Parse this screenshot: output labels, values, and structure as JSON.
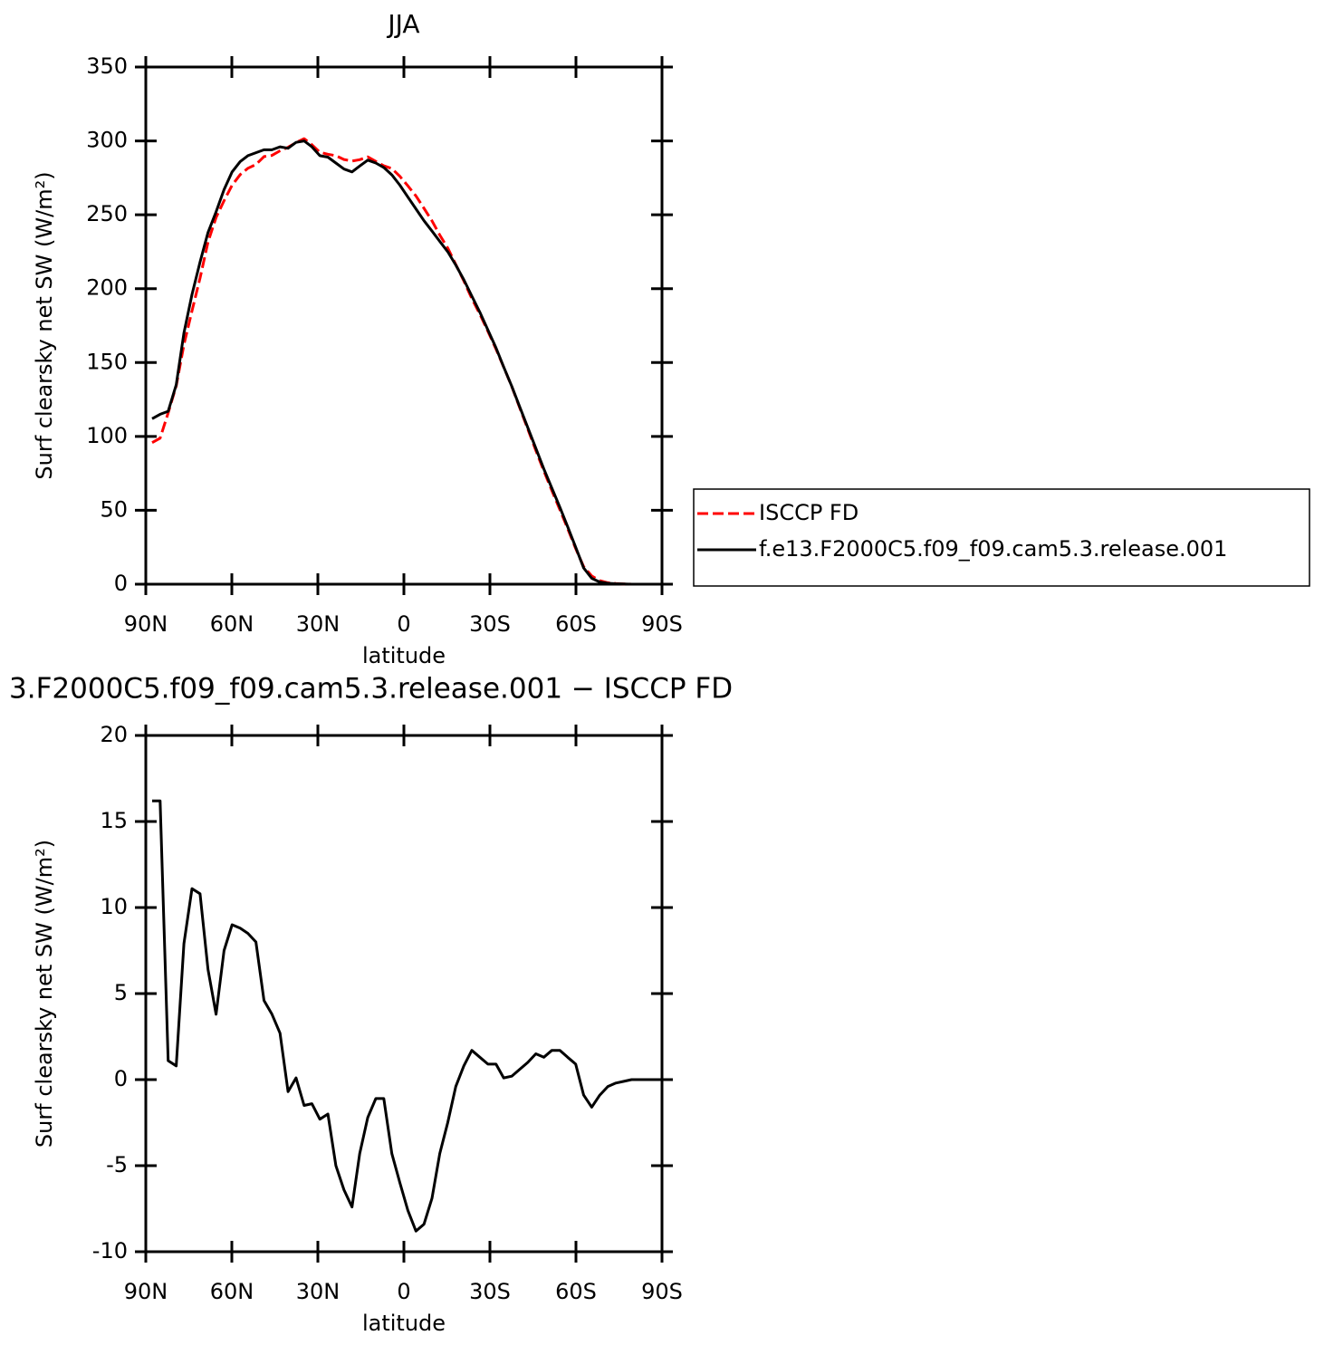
{
  "chart_data": [
    {
      "type": "line",
      "title": "JJA",
      "x_label": "latitude",
      "y_label": "Surf clearsky net SW (W/m²)",
      "x": [
        87.8,
        85.0,
        82.2,
        79.4,
        76.7,
        73.9,
        71.1,
        68.3,
        65.5,
        62.7,
        59.9,
        57.1,
        54.4,
        51.6,
        48.8,
        46.0,
        43.2,
        40.4,
        37.6,
        34.8,
        32.1,
        29.3,
        26.5,
        23.7,
        20.9,
        18.1,
        15.4,
        12.6,
        9.8,
        7.0,
        4.2,
        1.4,
        -1.4,
        -4.2,
        -7.0,
        -9.8,
        -12.5,
        -15.3,
        -18.1,
        -20.9,
        -23.7,
        -26.5,
        -29.3,
        -32.1,
        -34.8,
        -37.6,
        -40.4,
        -43.2,
        -46.0,
        -48.8,
        -51.6,
        -54.4,
        -57.1,
        -59.9,
        -62.7,
        -65.5,
        -68.3,
        -71.1,
        -73.9,
        -76.7,
        -79.4,
        -82.2,
        -85.0,
        -87.8
      ],
      "series": [
        {
          "name": "ISCCP FD",
          "color": "#ff0000",
          "dashed": true,
          "values": [
            95.8,
            98.8,
            115.9,
            134.2,
            162.1,
            184.9,
            207.2,
            231.6,
            248.2,
            259.5,
            270,
            277.2,
            281.5,
            284,
            289.4,
            290.2,
            293.3,
            295.7,
            298.9,
            301.5,
            297.4,
            292.3,
            291,
            290,
            287.4,
            286.4,
            287.3,
            289.2,
            286.1,
            283.1,
            281.3,
            276,
            269.6,
            262.8,
            254.4,
            245.9,
            236.3,
            227.5,
            216.4,
            205.2,
            193.3,
            182.7,
            171.1,
            159.1,
            146.9,
            133.8,
            119.4,
            105,
            90.5,
            76.7,
            63.3,
            50.3,
            37.7,
            24.1,
            11.9,
            5.6,
            2.4,
            1.0,
            0.5,
            0.2,
            0,
            0,
            0,
            0
          ]
        },
        {
          "name": "f.e13.F2000C5.f09_f09.cam5.3.release.001",
          "color": "#000000",
          "dashed": false,
          "values": [
            112,
            115,
            117,
            135,
            170,
            196,
            218,
            238,
            252,
            267,
            279,
            286,
            290,
            292,
            294,
            294,
            296,
            295,
            299,
            300,
            296,
            290,
            289,
            285,
            281,
            279,
            283,
            287,
            285,
            282,
            277,
            270,
            262,
            254,
            246,
            239,
            232,
            225,
            216,
            206,
            195,
            184,
            172,
            160,
            147,
            134,
            120,
            106,
            92,
            78,
            65,
            52,
            39,
            25,
            11,
            4,
            1.5,
            0.6,
            0.3,
            0.1,
            0,
            0,
            0,
            0
          ]
        }
      ],
      "xlim": [
        90,
        -90
      ],
      "xticks": [
        {
          "value": 90,
          "label": "90N"
        },
        {
          "value": 60,
          "label": "60N"
        },
        {
          "value": 30,
          "label": "30N"
        },
        0,
        {
          "value": -30,
          "label": "30S"
        },
        {
          "value": -60,
          "label": "60S"
        },
        {
          "value": -90,
          "label": "90S"
        }
      ],
      "ylim": [
        0,
        350
      ],
      "yticks": [
        0,
        50,
        100,
        150,
        200,
        250,
        300,
        350
      ],
      "legend": "right"
    },
    {
      "type": "line",
      "title": "3.F2000C5.f09_f09.cam5.3.release.001 − ISCCP FD",
      "x_label": "latitude",
      "y_label": "Surf clearsky net SW (W/m²)",
      "x": [
        87.8,
        85.0,
        82.2,
        79.4,
        76.7,
        73.9,
        71.1,
        68.3,
        65.5,
        62.7,
        59.9,
        57.1,
        54.4,
        51.6,
        48.8,
        46.0,
        43.2,
        40.4,
        37.6,
        34.8,
        32.1,
        29.3,
        26.5,
        23.7,
        20.9,
        18.1,
        15.4,
        12.6,
        9.8,
        7.0,
        4.2,
        1.4,
        -1.4,
        -4.2,
        -7.0,
        -9.8,
        -12.5,
        -15.3,
        -18.1,
        -20.9,
        -23.7,
        -26.5,
        -29.3,
        -32.1,
        -34.8,
        -37.6,
        -40.4,
        -43.2,
        -46.0,
        -48.8,
        -51.6,
        -54.4,
        -57.1,
        -59.9,
        -62.7,
        -65.5,
        -68.3,
        -71.1,
        -73.9,
        -76.7,
        -79.4,
        -82.2,
        -85.0,
        -87.8
      ],
      "series": [
        {
          "color": "#000000",
          "dashed": false,
          "values": [
            16.2,
            16.2,
            1.1,
            0.8,
            7.9,
            11.1,
            10.8,
            6.4,
            3.8,
            7.5,
            9.0,
            8.8,
            8.5,
            8.0,
            4.6,
            3.8,
            2.7,
            -0.7,
            0.1,
            -1.5,
            -1.4,
            -2.3,
            -2.0,
            -5.0,
            -6.4,
            -7.4,
            -4.3,
            -2.2,
            -1.1,
            -1.1,
            -4.3,
            -6.0,
            -7.6,
            -8.8,
            -8.4,
            -6.9,
            -4.3,
            -2.5,
            -0.4,
            0.8,
            1.7,
            1.3,
            0.9,
            0.9,
            0.1,
            0.2,
            0.6,
            1.0,
            1.5,
            1.3,
            1.7,
            1.7,
            1.3,
            0.9,
            -0.9,
            -1.6,
            -0.9,
            -0.4,
            -0.2,
            -0.1,
            0,
            0,
            0,
            0
          ]
        }
      ],
      "xlim": [
        90,
        -90
      ],
      "xticks": [
        {
          "value": 90,
          "label": "90N"
        },
        {
          "value": 60,
          "label": "60N"
        },
        {
          "value": 30,
          "label": "30N"
        },
        0,
        {
          "value": -30,
          "label": "30S"
        },
        {
          "value": -60,
          "label": "60S"
        },
        {
          "value": -90,
          "label": "90S"
        }
      ],
      "ylim": [
        -10,
        20
      ],
      "yticks": [
        -10,
        -5,
        0,
        5,
        10,
        15,
        20
      ]
    }
  ]
}
